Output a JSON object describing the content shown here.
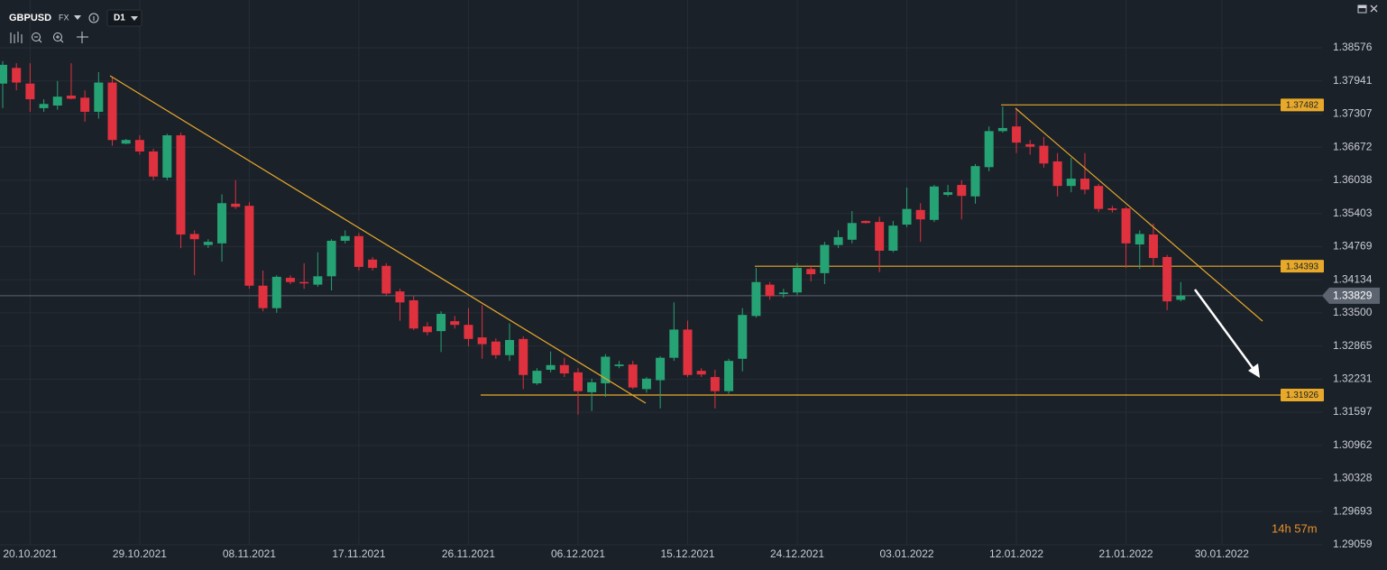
{
  "chart_data": {
    "type": "candlestick",
    "symbol": "GBPUSD",
    "market": "FX",
    "timeframe": "D1",
    "countdown": "14h 57m",
    "up_color": "#26a374",
    "down_color": "#e0313f",
    "level_color": "#e8a92a",
    "grid": true,
    "ylim": [
      1.29059,
      1.39491
    ],
    "yticks": [
      1.38576,
      1.37941,
      1.37307,
      1.36672,
      1.36038,
      1.35403,
      1.34769,
      1.34134,
      {
        "value": 1.335,
        "label": "1.33500"
      },
      1.32865,
      1.32231,
      1.31597,
      1.30962,
      1.30328,
      1.29693,
      1.29059
    ],
    "xticks": [
      "20.10.2021",
      "29.10.2021",
      "08.11.2021",
      "17.11.2021",
      "26.11.2021",
      "06.12.2021",
      "15.12.2021",
      "24.12.2021",
      "03.01.2022",
      "12.01.2022",
      "21.01.2022",
      "30.01.2022"
    ],
    "levels": [
      1.37482,
      1.34393,
      1.31926
    ],
    "last_price": 1.33829,
    "x": [
      "18.10.2021",
      "19.10.2021",
      "20.10.2021",
      "21.10.2021",
      "22.10.2021",
      "24.10.2021",
      "25.10.2021",
      "26.10.2021",
      "27.10.2021",
      "28.10.2021",
      "29.10.2021",
      "31.10.2021",
      "01.11.2021",
      "02.11.2021",
      "03.11.2021",
      "04.11.2021",
      "05.11.2021",
      "07.11.2021",
      "08.11.2021",
      "09.11.2021",
      "10.11.2021",
      "11.11.2021",
      "12.11.2021",
      "14.11.2021",
      "15.11.2021",
      "16.11.2021",
      "17.11.2021",
      "18.11.2021",
      "19.11.2021",
      "21.11.2021",
      "22.11.2021",
      "23.11.2021",
      "24.11.2021",
      "25.11.2021",
      "26.11.2021",
      "28.11.2021",
      "29.11.2021",
      "30.11.2021",
      "01.12.2021",
      "02.12.2021",
      "03.12.2021",
      "05.12.2021",
      "06.12.2021",
      "07.12.2021",
      "08.12.2021",
      "09.12.2021",
      "10.12.2021",
      "12.12.2021",
      "13.12.2021",
      "14.12.2021",
      "15.12.2021",
      "16.12.2021",
      "17.12.2021",
      "19.12.2021",
      "20.12.2021",
      "21.12.2021",
      "22.12.2021",
      "23.12.2021",
      "24.12.2021",
      "26.12.2021",
      "27.12.2021",
      "28.12.2021",
      "29.12.2021",
      "30.12.2021",
      "31.12.2021",
      "02.01.2022",
      "03.01.2022",
      "04.01.2022",
      "05.01.2022",
      "06.01.2022",
      "07.01.2022",
      "09.01.2022",
      "10.01.2022",
      "11.01.2022",
      "12.01.2022",
      "13.01.2022",
      "14.01.2022",
      "16.01.2022",
      "17.01.2022",
      "18.01.2022",
      "19.01.2022",
      "20.01.2022",
      "21.01.2022",
      "23.01.2022",
      "24.01.2022",
      "25.01.2022",
      "26.01.2022"
    ],
    "open": [
      1.3789,
      1.3819,
      1.3789,
      1.3742,
      1.3747,
      1.3766,
      1.3762,
      1.3735,
      1.3791,
      1.3674,
      1.3681,
      1.3659,
      1.3609,
      1.369,
      1.3501,
      1.348,
      1.3483,
      1.3559,
      1.3555,
      1.3402,
      1.3359,
      1.3417,
      1.3409,
      1.3404,
      1.342,
      1.3488,
      1.3497,
      1.3452,
      1.344,
      1.3391,
      1.3374,
      1.3324,
      1.3315,
      1.3334,
      1.3327,
      1.3303,
      1.3295,
      1.3269,
      1.33,
      1.3215,
      1.3241,
      1.325,
      1.3236,
      1.3198,
      1.3215,
      1.3248,
      1.3251,
      1.3204,
      1.3221,
      1.3264,
      1.3318,
      1.3239,
      1.3227,
      1.32,
      1.3262,
      1.3344,
      1.3404,
      1.3386,
      1.3389,
      1.3434,
      1.3426,
      1.348,
      1.349,
      1.3526,
      1.3524,
      1.3469,
      1.3519,
      1.3547,
      1.3528,
      1.3576,
      1.3595,
      1.3573,
      1.3629,
      1.3698,
      1.3707,
      1.3673,
      1.367,
      1.364,
      1.3593,
      1.3607,
      1.3593,
      1.355,
      1.355,
      1.3481,
      1.35,
      1.3457,
      1.3375
    ],
    "high": [
      1.3832,
      1.3828,
      1.3828,
      1.3759,
      1.3794,
      1.3828,
      1.3776,
      1.3811,
      1.3802,
      1.3683,
      1.369,
      1.3664,
      1.3693,
      1.3695,
      1.3508,
      1.3491,
      1.3577,
      1.3604,
      1.3562,
      1.3431,
      1.3422,
      1.3422,
      1.3445,
      1.3466,
      1.3491,
      1.3508,
      1.3503,
      1.3457,
      1.3445,
      1.3396,
      1.3382,
      1.3332,
      1.3353,
      1.3344,
      1.3359,
      1.3365,
      1.3301,
      1.333,
      1.3305,
      1.3244,
      1.3276,
      1.3264,
      1.3244,
      1.3224,
      1.3271,
      1.3258,
      1.3258,
      1.3227,
      1.3267,
      1.337,
      1.3335,
      1.3244,
      1.3241,
      1.3262,
      1.3359,
      1.3436,
      1.3409,
      1.3396,
      1.3445,
      1.3441,
      1.3486,
      1.3508,
      1.3545,
      1.3527,
      1.3534,
      1.3526,
      1.359,
      1.356,
      1.3595,
      1.3595,
      1.3604,
      1.3635,
      1.3707,
      1.3745,
      1.3742,
      1.3681,
      1.3687,
      1.3656,
      1.3647,
      1.3656,
      1.3597,
      1.3555,
      1.3553,
      1.3508,
      1.3521,
      1.3461,
      1.3409
    ],
    "low": [
      1.3742,
      1.3776,
      1.3735,
      1.3735,
      1.3739,
      1.3759,
      1.3716,
      1.3722,
      1.367,
      1.3673,
      1.3653,
      1.3604,
      1.3604,
      1.3474,
      1.3422,
      1.3474,
      1.3448,
      1.3549,
      1.3396,
      1.3353,
      1.335,
      1.3405,
      1.3396,
      1.34,
      1.3393,
      1.3483,
      1.3431,
      1.3431,
      1.3382,
      1.3335,
      1.3317,
      1.3307,
      1.3275,
      1.332,
      1.3286,
      1.3262,
      1.3262,
      1.3258,
      1.3204,
      1.3212,
      1.3236,
      1.3227,
      1.3155,
      1.3162,
      1.3189,
      1.3244,
      1.3204,
      1.3197,
      1.3167,
      1.3258,
      1.3227,
      1.3227,
      1.3167,
      1.3195,
      1.3238,
      1.3341,
      1.3375,
      1.3379,
      1.3384,
      1.341,
      1.3405,
      1.3474,
      1.3483,
      1.3521,
      1.3428,
      1.3466,
      1.3514,
      1.3486,
      1.3524,
      1.3573,
      1.3529,
      1.3559,
      1.3621,
      1.3695,
      1.3656,
      1.3653,
      1.3628,
      1.3573,
      1.3581,
      1.3577,
      1.3543,
      1.3542,
      1.3436,
      1.3434,
      1.344,
      1.3355,
      1.3372
    ],
    "close": [
      1.3825,
      1.3791,
      1.3759,
      1.375,
      1.3764,
      1.376,
      1.3735,
      1.3791,
      1.3681,
      1.3681,
      1.3659,
      1.3611,
      1.369,
      1.35,
      1.3491,
      1.3486,
      1.356,
      1.3553,
      1.3402,
      1.3359,
      1.3419,
      1.3409,
      1.3407,
      1.342,
      1.3488,
      1.3497,
      1.3438,
      1.3436,
      1.3387,
      1.337,
      1.332,
      1.3313,
      1.3348,
      1.3327,
      1.33,
      1.329,
      1.3269,
      1.3298,
      1.3231,
      1.3239,
      1.325,
      1.3234,
      1.32,
      1.3217,
      1.3266,
      1.3251,
      1.3207,
      1.3224,
      1.3264,
      1.3318,
      1.3231,
      1.3232,
      1.32,
      1.3258,
      1.3346,
      1.3409,
      1.3382,
      1.3389,
      1.3436,
      1.3424,
      1.348,
      1.3495,
      1.3522,
      1.3522,
      1.3469,
      1.3517,
      1.3549,
      1.3529,
      1.3592,
      1.3581,
      1.3574,
      1.3631,
      1.3698,
      1.3704,
      1.3676,
      1.3668,
      1.3636,
      1.3593,
      1.3607,
      1.3586,
      1.3549,
      1.3547,
      1.3483,
      1.3501,
      1.3455,
      1.3372,
      1.3383
    ]
  }
}
